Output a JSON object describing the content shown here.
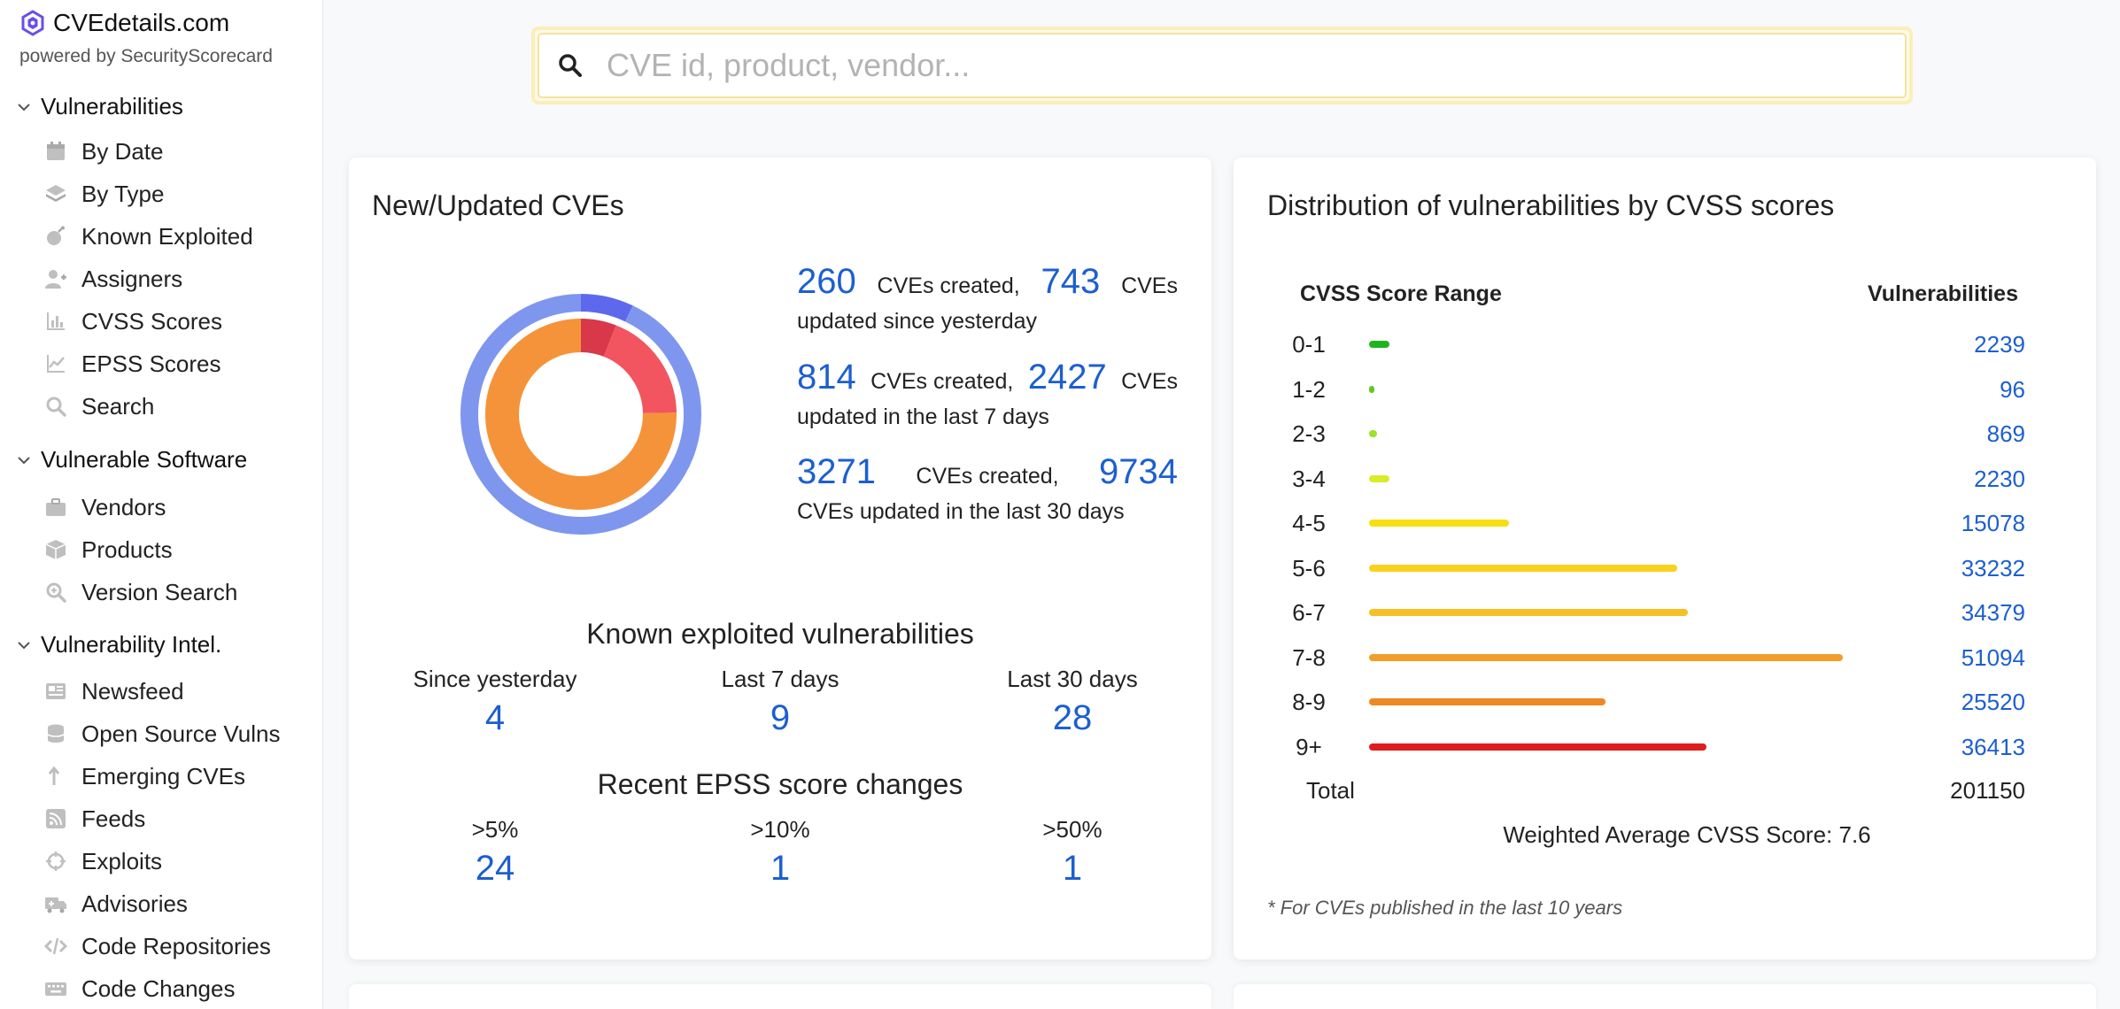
{
  "brand": {
    "title": "CVEdetails.com",
    "subtitle": "powered by SecurityScorecard",
    "logo_color": "#6a4ee8"
  },
  "sidebar": {
    "sections": [
      {
        "label": "Vulnerabilities",
        "items": [
          {
            "label": "By Date",
            "icon": "calendar-icon"
          },
          {
            "label": "By Type",
            "icon": "layers-icon"
          },
          {
            "label": "Known Exploited",
            "icon": "bomb-icon"
          },
          {
            "label": "Assigners",
            "icon": "user-plus-icon"
          },
          {
            "label": "CVSS Scores",
            "icon": "bar-chart-icon"
          },
          {
            "label": "EPSS Scores",
            "icon": "line-chart-icon"
          },
          {
            "label": "Search",
            "icon": "search-icon"
          }
        ]
      },
      {
        "label": "Vulnerable Software",
        "items": [
          {
            "label": "Vendors",
            "icon": "briefcase-icon"
          },
          {
            "label": "Products",
            "icon": "box-icon"
          },
          {
            "label": "Version Search",
            "icon": "zoom-icon"
          }
        ]
      },
      {
        "label": "Vulnerability Intel.",
        "items": [
          {
            "label": "Newsfeed",
            "icon": "newspaper-icon"
          },
          {
            "label": "Open Source Vulns",
            "icon": "database-icon"
          },
          {
            "label": "Emerging CVEs",
            "icon": "arrow-up-icon"
          },
          {
            "label": "Feeds",
            "icon": "rss-icon"
          },
          {
            "label": "Exploits",
            "icon": "crosshair-icon"
          },
          {
            "label": "Advisories",
            "icon": "truck-icon"
          },
          {
            "label": "Code Repositories",
            "icon": "code-icon"
          },
          {
            "label": "Code Changes",
            "icon": "keyboard-icon"
          }
        ]
      }
    ]
  },
  "search": {
    "placeholder": "CVE id, product, vendor..."
  },
  "new_updated": {
    "title": "New/Updated CVEs",
    "stats": [
      {
        "created": "260",
        "created_text": "CVEs created,",
        "updated": "743",
        "updated_text": "CVEs",
        "period": "updated since yesterday"
      },
      {
        "created": "814",
        "created_text": "CVEs created,",
        "updated": "2427",
        "updated_text": "CVEs",
        "period": "updated in the last 7 days"
      },
      {
        "created": "3271",
        "created_text": "CVEs created,",
        "updated": "9734",
        "updated_text": "",
        "period": "CVEs updated in the last 30 days"
      }
    ],
    "donut": {
      "outer": {
        "values": [
          743,
          9734
        ],
        "colors": [
          "#5e68ec",
          "#7f96ef"
        ]
      },
      "middle": {
        "values": [
          260,
          814,
          3271
        ],
        "colors": [
          "#d9374a",
          "#f25460",
          "#f5933a"
        ]
      }
    }
  },
  "known_exploited": {
    "title": "Known exploited vulnerabilities",
    "columns": [
      {
        "label": "Since yesterday",
        "value": "4"
      },
      {
        "label": "Last 7 days",
        "value": "9"
      },
      {
        "label": "Last 30 days",
        "value": "28"
      }
    ]
  },
  "epss": {
    "title": "Recent EPSS score changes",
    "columns": [
      {
        "label": ">5%",
        "value": "24"
      },
      {
        "label": ">10%",
        "value": "1"
      },
      {
        "label": ">50%",
        "value": "1"
      }
    ]
  },
  "distribution": {
    "title": "Distribution of vulnerabilities by CVSS scores",
    "col_range": "CVSS Score Range",
    "col_vulns": "Vulnerabilities",
    "total_label": "Total",
    "total_value": "201150",
    "weighted_label": "Weighted Average CVSS Score: 7.6",
    "footnote": "* For CVEs published in the last 10 years"
  },
  "chart_data": {
    "type": "bar",
    "categories": [
      "0-1",
      "1-2",
      "2-3",
      "3-4",
      "4-5",
      "5-6",
      "6-7",
      "7-8",
      "8-9",
      "9+"
    ],
    "values": [
      2239,
      96,
      869,
      2230,
      15078,
      33232,
      34379,
      51094,
      25520,
      36413
    ],
    "colors": [
      "#1fb51f",
      "#62c823",
      "#9be22a",
      "#d9ec2a",
      "#f8de11",
      "#fad21b",
      "#f7be26",
      "#f29e2a",
      "#ee8820",
      "#e01c1c"
    ],
    "title": "Distribution of vulnerabilities by CVSS scores",
    "xlabel": "CVSS Score Range",
    "ylabel": "Vulnerabilities"
  }
}
